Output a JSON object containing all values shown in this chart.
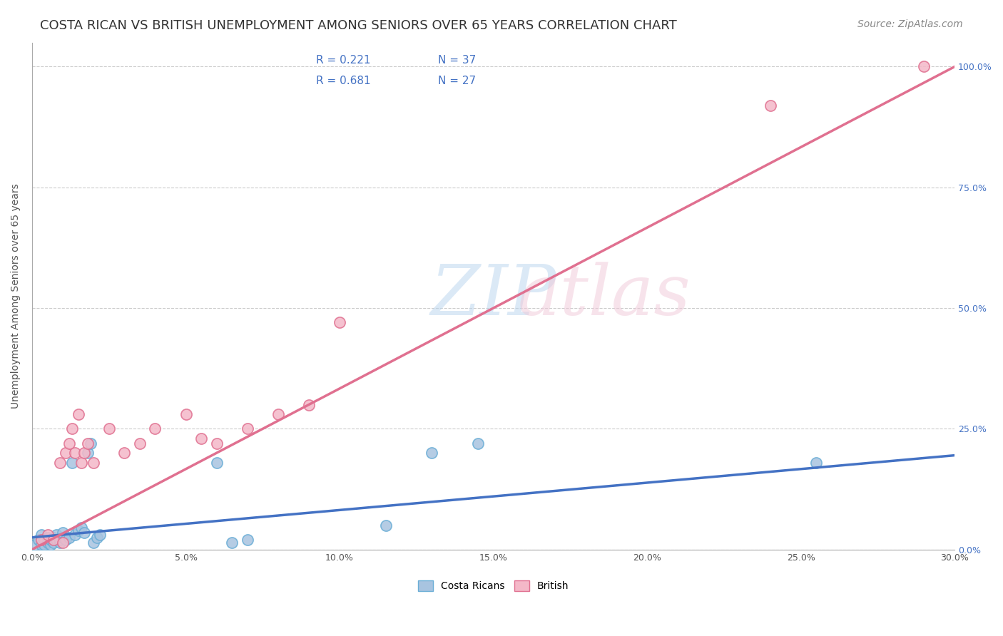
{
  "title": "COSTA RICAN VS BRITISH UNEMPLOYMENT AMONG SENIORS OVER 65 YEARS CORRELATION CHART",
  "source": "Source: ZipAtlas.com",
  "ylabel": "Unemployment Among Seniors over 65 years",
  "xlabel_ticks": [
    "0.0%",
    "5.0%",
    "10.0%",
    "15.0%",
    "20.0%",
    "25.0%",
    "30.0%"
  ],
  "ylabel_ticks": [
    "0.0%",
    "25.0%",
    "50.0%",
    "75.0%",
    "100.0%"
  ],
  "xlim": [
    0.0,
    0.3
  ],
  "ylim": [
    0.0,
    1.05
  ],
  "cr_color": "#a8c4e0",
  "cr_edge_color": "#6baed6",
  "br_color": "#f4b8c8",
  "br_edge_color": "#e07090",
  "cr_line_color": "#4472c4",
  "br_line_color": "#e07090",
  "legend_r_cr": "R = 0.221",
  "legend_n_cr": "N = 37",
  "legend_r_br": "R = 0.681",
  "legend_n_br": "N = 27",
  "watermark": "ZIPatlas",
  "watermark_color": "#c0d8f0",
  "watermark_r_color": "#f0c0d0",
  "costa_rican_x": [
    0.001,
    0.002,
    0.003,
    0.003,
    0.004,
    0.004,
    0.005,
    0.005,
    0.006,
    0.006,
    0.007,
    0.007,
    0.008,
    0.008,
    0.009,
    0.009,
    0.01,
    0.01,
    0.011,
    0.012,
    0.013,
    0.014,
    0.015,
    0.016,
    0.017,
    0.018,
    0.019,
    0.02,
    0.021,
    0.022,
    0.06,
    0.065,
    0.07,
    0.13,
    0.145,
    0.255,
    0.115
  ],
  "costa_rican_y": [
    0.01,
    0.02,
    0.01,
    0.03,
    0.01,
    0.02,
    0.015,
    0.025,
    0.01,
    0.02,
    0.015,
    0.025,
    0.02,
    0.03,
    0.015,
    0.02,
    0.025,
    0.035,
    0.02,
    0.025,
    0.18,
    0.03,
    0.04,
    0.045,
    0.035,
    0.2,
    0.22,
    0.015,
    0.025,
    0.03,
    0.18,
    0.015,
    0.02,
    0.2,
    0.22,
    0.18,
    0.05
  ],
  "british_x": [
    0.003,
    0.005,
    0.007,
    0.009,
    0.01,
    0.011,
    0.012,
    0.013,
    0.014,
    0.015,
    0.016,
    0.017,
    0.018,
    0.02,
    0.025,
    0.03,
    0.035,
    0.04,
    0.05,
    0.055,
    0.06,
    0.07,
    0.08,
    0.09,
    0.1,
    0.24,
    0.29
  ],
  "british_y": [
    0.02,
    0.03,
    0.02,
    0.18,
    0.015,
    0.2,
    0.22,
    0.25,
    0.2,
    0.28,
    0.18,
    0.2,
    0.22,
    0.18,
    0.25,
    0.2,
    0.22,
    0.25,
    0.28,
    0.23,
    0.22,
    0.25,
    0.28,
    0.3,
    0.47,
    0.92,
    1.0
  ],
  "cr_trend_x": [
    0.0,
    0.3
  ],
  "cr_trend_y": [
    0.025,
    0.195
  ],
  "br_trend_x": [
    0.0,
    0.3
  ],
  "br_trend_y": [
    0.0,
    1.0
  ],
  "title_fontsize": 13,
  "source_fontsize": 10,
  "axis_label_fontsize": 10,
  "tick_fontsize": 9,
  "legend_fontsize": 11
}
